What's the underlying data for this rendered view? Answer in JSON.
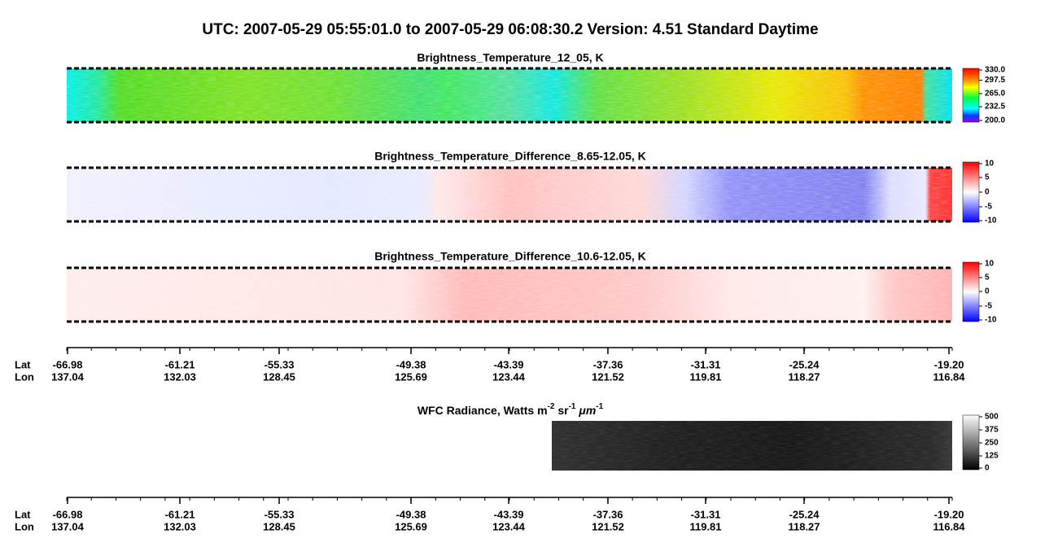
{
  "title": "UTC:  2007-05-29   05:55:01.0  to  2007-05-29   06:08:30.2    Version: 4.51  Standard Daytime",
  "panels": [
    {
      "title": "Brightness_Temperature_12_05, K",
      "colorbar_ticks": [
        "330.0",
        "297.5",
        "265.0",
        "232.5",
        "200.0"
      ]
    },
    {
      "title": "Brightness_Temperature_Difference_8.65-12.05, K",
      "colorbar_ticks": [
        "10",
        "5",
        "0",
        "-5",
        "-10"
      ]
    },
    {
      "title": "Brightness_Temperature_Difference_10.6-12.05, K",
      "colorbar_ticks": [
        "10",
        "5",
        "0",
        "-5",
        "-10"
      ]
    },
    {
      "title": [
        "WFC Radiance, Watts m",
        "-2",
        " sr",
        "-1",
        " μm",
        "-1"
      ],
      "colorbar_ticks": [
        "500",
        "375",
        "250",
        "125",
        "0"
      ]
    }
  ],
  "axes": [
    {
      "lat_label": "Lat",
      "lon_label": "Lon",
      "lat": [
        "-66.98",
        "-61.21",
        "-55.33",
        "-49.38",
        "-43.39",
        "-37.36",
        "-31.31",
        "-25.24",
        "-19.20"
      ],
      "lon": [
        "137.04",
        "132.03",
        "128.45",
        "125.69",
        "123.44",
        "121.52",
        "119.81",
        "118.27",
        "116.84"
      ]
    },
    {
      "lat_label": "Lat",
      "lon_label": "Lon",
      "lat": [
        "-66.98",
        "-61.21",
        "-55.33",
        "-49.38",
        "-43.39",
        "-37.36",
        "-31.31",
        "-25.24",
        "-19.20"
      ],
      "lon": [
        "137.04",
        "132.03",
        "128.45",
        "125.69",
        "123.44",
        "121.52",
        "119.81",
        "118.27",
        "116.84"
      ]
    }
  ]
}
